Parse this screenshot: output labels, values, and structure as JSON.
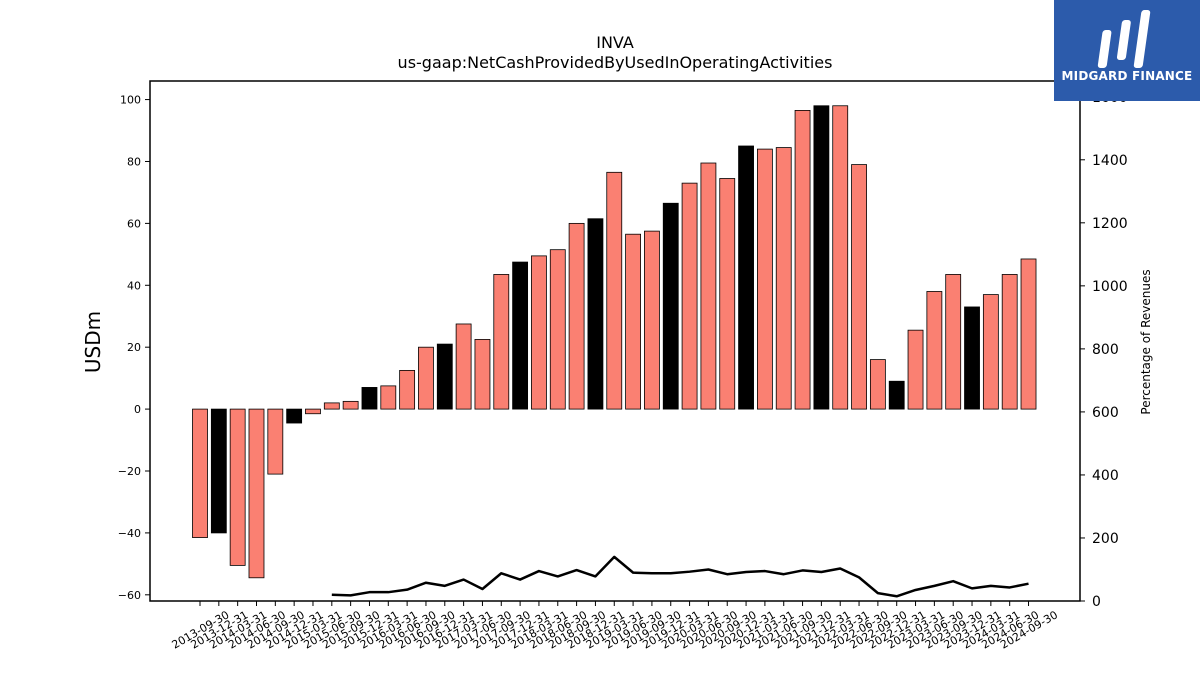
{
  "logo": {
    "text": "MIDGARD FINANCE"
  },
  "chart_data": {
    "type": "bar",
    "title": "INVA",
    "subtitle": "us-gaap:NetCashProvidedByUsedInOperatingActivities",
    "ylabel": "USDm",
    "y2label": "Percentage of Revenues",
    "ylim": [
      -62,
      106
    ],
    "y2lim": [
      0,
      1650
    ],
    "yticks": [
      -60,
      -40,
      -20,
      0,
      20,
      40,
      60,
      80,
      100
    ],
    "y2ticks": [
      0,
      200,
      400,
      600,
      800,
      1000,
      1200,
      1400,
      1600
    ],
    "grid": false,
    "colors": {
      "bar": "#fa8072",
      "bar_q4": "#000000",
      "line": "#000000"
    },
    "categories": [
      "2013-09-30",
      "2013-12-31",
      "2014-03-31",
      "2014-06-30",
      "2014-09-30",
      "2014-12-31",
      "2015-03-31",
      "2015-06-30",
      "2015-09-30",
      "2015-12-31",
      "2016-03-31",
      "2016-06-30",
      "2016-09-30",
      "2016-12-31",
      "2017-03-31",
      "2017-06-30",
      "2017-09-30",
      "2017-12-31",
      "2018-03-31",
      "2018-06-30",
      "2018-09-30",
      "2018-12-31",
      "2019-03-31",
      "2019-06-30",
      "2019-09-30",
      "2019-12-31",
      "2020-03-31",
      "2020-06-30",
      "2020-09-30",
      "2020-12-31",
      "2021-03-31",
      "2021-06-30",
      "2021-09-30",
      "2021-12-31",
      "2022-03-31",
      "2022-06-30",
      "2022-09-30",
      "2022-12-31",
      "2023-03-31",
      "2023-06-30",
      "2023-09-30",
      "2023-12-31",
      "2024-03-31",
      "2024-06-30",
      "2024-09-30"
    ],
    "series": [
      {
        "type": "bar",
        "values": [
          -41.5,
          -40,
          -50.5,
          -54.5,
          -21,
          -4.5,
          -1.5,
          2,
          2.5,
          7,
          7.5,
          12.5,
          20,
          21,
          27.5,
          22.5,
          43.5,
          47.5,
          49.5,
          51.5,
          60,
          61.5,
          76.5,
          56.5,
          57.5,
          66.5,
          73,
          79.5,
          74.5,
          85,
          84,
          84.5,
          96.5,
          98,
          98,
          79,
          16,
          9,
          25.5,
          38,
          43.5,
          33,
          37,
          43.5,
          48.5
        ],
        "highlight": [
          false,
          true,
          false,
          false,
          false,
          true,
          false,
          false,
          false,
          true,
          false,
          false,
          false,
          true,
          false,
          false,
          false,
          true,
          false,
          false,
          false,
          true,
          false,
          false,
          false,
          true,
          false,
          false,
          false,
          true,
          false,
          false,
          false,
          true,
          false,
          false,
          false,
          true,
          false,
          false,
          false,
          true,
          false,
          false,
          false
        ]
      },
      {
        "type": "line",
        "axis": "right",
        "values": [
          null,
          null,
          null,
          null,
          null,
          null,
          null,
          20,
          18,
          28,
          28,
          36,
          58,
          48,
          68,
          38,
          88,
          68,
          95,
          78,
          98,
          78,
          140,
          90,
          88,
          88,
          93,
          100,
          85,
          92,
          95,
          85,
          97,
          92,
          103,
          75,
          25,
          15,
          35,
          48,
          63,
          40,
          48,
          43,
          55
        ]
      }
    ]
  }
}
